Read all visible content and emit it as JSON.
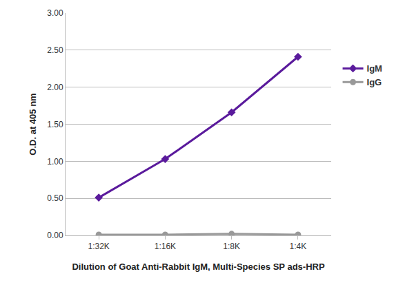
{
  "chart_data": {
    "type": "line",
    "x_label": "Dilution of Goat Anti-Rabbit IgM, Multi-Species SP ads-HRP",
    "y_label": "O.D. at 405 nm",
    "categories": [
      "1:32K",
      "1:16K",
      "1:8K",
      "1:4K"
    ],
    "series": [
      {
        "name": "IgM",
        "color": "#5a1a9c",
        "marker": "diamond",
        "line_style": "solid",
        "values": [
          0.51,
          1.03,
          1.66,
          2.41
        ]
      },
      {
        "name": "IgG",
        "color": "#999999",
        "marker": "circle",
        "line_style": "solid",
        "values": [
          0.01,
          0.01,
          0.02,
          0.01
        ]
      }
    ],
    "ylim": [
      0,
      3
    ],
    "yticks": [
      {
        "value": 0,
        "label": "0.00"
      },
      {
        "value": 0.5,
        "label": "0.50"
      },
      {
        "value": 1,
        "label": "1.00"
      },
      {
        "value": 1.5,
        "label": "1.50"
      },
      {
        "value": 2,
        "label": "2.00"
      },
      {
        "value": 2.5,
        "label": "2.50"
      },
      {
        "value": 3,
        "label": "3.00"
      }
    ],
    "grid": true,
    "legend": "right"
  }
}
